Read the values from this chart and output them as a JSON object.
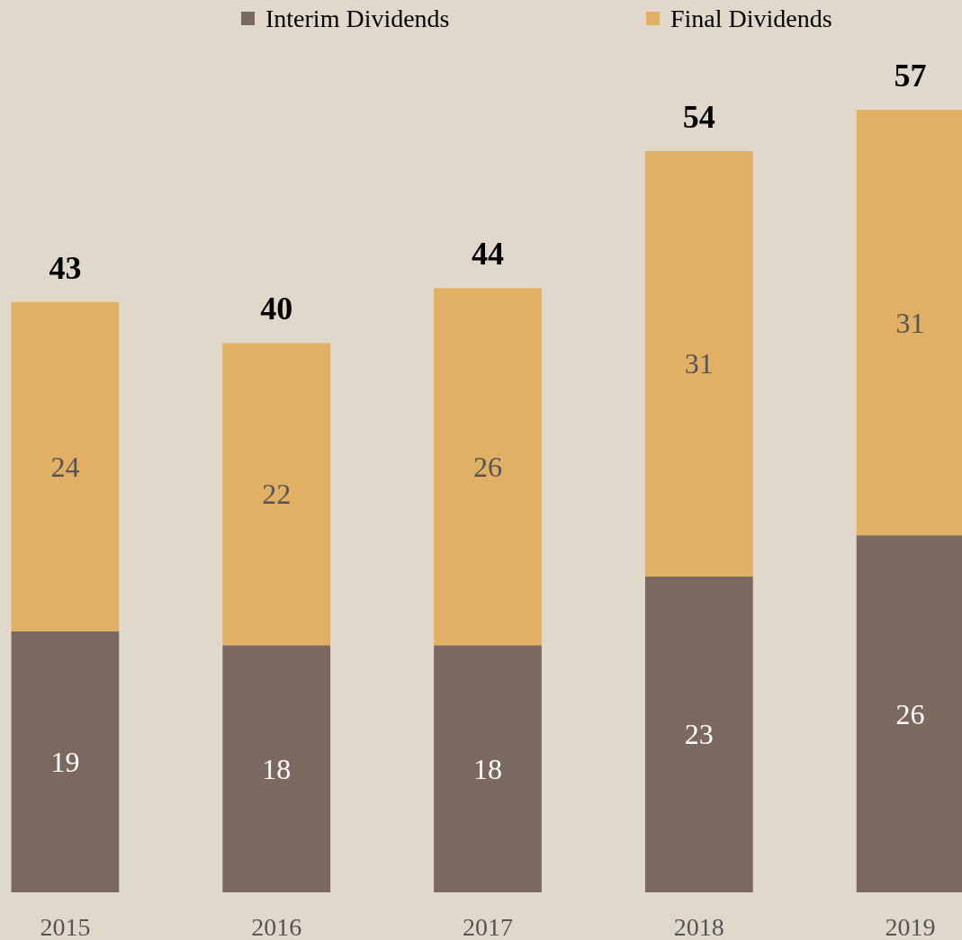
{
  "chart_data": {
    "type": "bar",
    "stacked": true,
    "categories": [
      "2015",
      "2016",
      "2017",
      "2018",
      "2019"
    ],
    "series": [
      {
        "name": "Interim Dividends",
        "color": "#7b695f",
        "values": [
          19,
          18,
          18,
          23,
          26
        ]
      },
      {
        "name": "Final Dividends",
        "color": "#e2b064",
        "values": [
          24,
          22,
          26,
          31,
          31
        ]
      }
    ],
    "tick_labels": "x",
    "data_labels": true,
    "totals": [
      "43",
      "40",
      "44",
      "54",
      "57"
    ],
    "legend": "top"
  }
}
